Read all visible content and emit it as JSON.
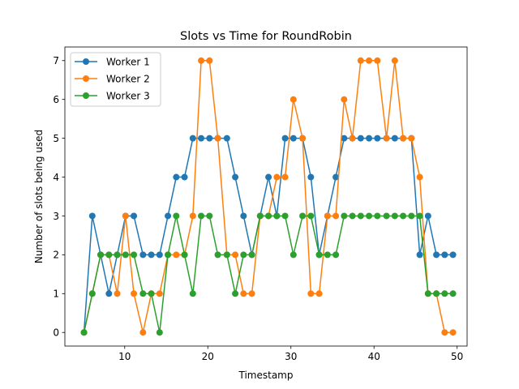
{
  "chart_data": {
    "type": "line",
    "title": "Slots vs Time for RoundRobin",
    "xlabel": "Timestamp",
    "ylabel": "Number of slots being used",
    "xlim": [
      2.8,
      51.2
    ],
    "ylim": [
      -0.35,
      7.35
    ],
    "xticks": [
      10,
      20,
      30,
      40,
      50
    ],
    "yticks": [
      0,
      1,
      2,
      3,
      4,
      5,
      6,
      7
    ],
    "grid": false,
    "legend_position": "top-left",
    "x": [
      5.1,
      6.1,
      7.1,
      8.1,
      9.1,
      10.1,
      11.1,
      12.2,
      13.2,
      14.2,
      15.2,
      16.2,
      17.2,
      18.2,
      19.2,
      20.2,
      21.2,
      22.3,
      23.3,
      24.3,
      25.3,
      26.3,
      27.3,
      28.3,
      29.3,
      30.3,
      31.4,
      32.4,
      33.4,
      34.4,
      35.4,
      36.4,
      37.4,
      38.4,
      39.4,
      40.4,
      41.5,
      42.5,
      43.5,
      44.5,
      45.5,
      46.5,
      47.5,
      48.5,
      49.5
    ],
    "series": [
      {
        "name": "Worker 1",
        "color": "#1f77b4",
        "values": [
          0,
          3,
          2,
          1,
          2,
          3,
          3,
          2,
          2,
          2,
          3,
          4,
          4,
          5,
          5,
          5,
          5,
          5,
          4,
          3,
          2,
          3,
          4,
          3,
          5,
          5,
          5,
          4,
          2,
          3,
          4,
          5,
          5,
          5,
          5,
          5,
          5,
          5,
          5,
          5,
          2,
          3,
          2,
          2,
          2
        ]
      },
      {
        "name": "Worker 2",
        "color": "#ff7f0e",
        "values": [
          0,
          1,
          2,
          2,
          1,
          3,
          1,
          0,
          1,
          1,
          2,
          2,
          2,
          3,
          7,
          7,
          5,
          2,
          2,
          1,
          1,
          3,
          3,
          4,
          4,
          6,
          5,
          1,
          1,
          3,
          3,
          6,
          5,
          7,
          7,
          7,
          5,
          7,
          5,
          5,
          4,
          1,
          1,
          0,
          0
        ]
      },
      {
        "name": "Worker 3",
        "color": "#2ca02c",
        "values": [
          0,
          1,
          2,
          2,
          2,
          2,
          2,
          1,
          1,
          0,
          2,
          3,
          2,
          1,
          3,
          3,
          2,
          2,
          1,
          2,
          2,
          3,
          3,
          3,
          3,
          2,
          3,
          3,
          2,
          2,
          2,
          3,
          3,
          3,
          3,
          3,
          3,
          3,
          3,
          3,
          3,
          1,
          1,
          1,
          1
        ]
      }
    ]
  }
}
